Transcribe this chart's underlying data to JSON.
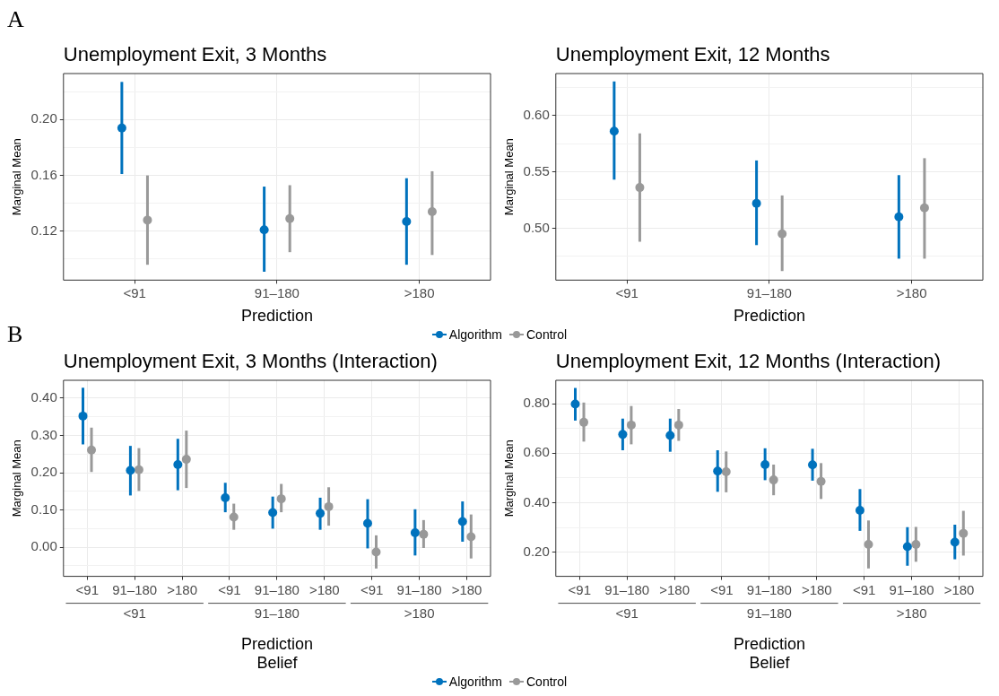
{
  "chart_data": [
    {
      "type": "other",
      "title": "A"
    },
    {
      "type": "scatter",
      "title": "Unemployment Exit, 3 Months",
      "xlabel": "Prediction",
      "ylabel": "Marginal Mean",
      "categories": [
        "<91",
        "91–180",
        ">180"
      ],
      "ylim": [
        0.085,
        0.233
      ],
      "yticks": [
        {
          "value": 0.1,
          "label": null
        },
        {
          "value": 0.12,
          "label": "0.12"
        },
        {
          "value": 0.14,
          "label": null
        },
        {
          "value": 0.16,
          "label": "0.16"
        },
        {
          "value": 0.18,
          "label": null
        },
        {
          "value": 0.2,
          "label": "0.20"
        },
        {
          "value": 0.22,
          "label": null
        }
      ],
      "grid": true,
      "legend": "bottom",
      "marker": "circle",
      "series": [
        {
          "name": "Algorithm",
          "color": "#0072bd",
          "values": [
            0.194,
            0.121,
            0.127
          ],
          "errors": [
            [
              0.161,
              0.227
            ],
            [
              0.091,
              0.152
            ],
            [
              0.096,
              0.158
            ]
          ]
        },
        {
          "name": "Control",
          "color": "#999999",
          "values": [
            0.128,
            0.129,
            0.134
          ],
          "errors": [
            [
              0.096,
              0.16
            ],
            [
              0.105,
              0.153
            ],
            [
              0.103,
              0.163
            ]
          ]
        }
      ]
    },
    {
      "type": "scatter",
      "title": "Unemployment Exit, 12 Months",
      "xlabel": "Prediction",
      "ylabel": "Marginal Mean",
      "categories": [
        "<91",
        "91–180",
        ">180"
      ],
      "ylim": [
        0.454,
        0.637
      ],
      "yticks": [
        {
          "value": 0.475,
          "label": null
        },
        {
          "value": 0.5,
          "label": "0.50"
        },
        {
          "value": 0.525,
          "label": null
        },
        {
          "value": 0.55,
          "label": "0.55"
        },
        {
          "value": 0.575,
          "label": null
        },
        {
          "value": 0.6,
          "label": "0.60"
        },
        {
          "value": 0.625,
          "label": null
        }
      ],
      "grid": true,
      "marker": "circle",
      "series": [
        {
          "color": "#0072bd",
          "values": [
            0.586,
            0.522,
            0.51
          ],
          "errors": [
            [
              0.543,
              0.63
            ],
            [
              0.485,
              0.56
            ],
            [
              0.473,
              0.547
            ]
          ]
        },
        {
          "color": "#999999",
          "values": [
            0.536,
            0.495,
            0.518
          ],
          "errors": [
            [
              0.488,
              0.584
            ],
            [
              0.462,
              0.529
            ],
            [
              0.473,
              0.562
            ]
          ]
        }
      ]
    },
    {
      "type": "other",
      "title": "B"
    },
    {
      "type": "scatter",
      "title": "Unemployment Exit, 3 Months (Interaction)",
      "xlabel": "Prediction\nBelief",
      "ylabel": "Marginal Mean",
      "categories": [
        "<91",
        "91–180",
        ">180",
        "<91",
        "91–180",
        ">180",
        "<91",
        "91–180",
        ">180"
      ],
      "annotations": [
        "<91",
        "91–180",
        ">180"
      ],
      "ylim": [
        -0.078,
        0.448
      ],
      "yticks": [
        {
          "value": -0.05,
          "label": null
        },
        {
          "value": 0,
          "label": "0.00"
        },
        {
          "value": 0.05,
          "label": null
        },
        {
          "value": 0.1,
          "label": "0.10"
        },
        {
          "value": 0.15,
          "label": null
        },
        {
          "value": 0.2,
          "label": "0.20"
        },
        {
          "value": 0.25,
          "label": null
        },
        {
          "value": 0.3,
          "label": "0.30"
        },
        {
          "value": 0.35,
          "label": null
        },
        {
          "value": 0.4,
          "label": "0.40"
        }
      ],
      "grid": true,
      "legend": "bottom",
      "marker": "circle",
      "series": [
        {
          "name": "Algorithm",
          "color": "#0072bd",
          "values": [
            0.352,
            0.206,
            0.222,
            0.133,
            0.093,
            0.091,
            0.064,
            0.039,
            0.069
          ],
          "errors": [
            [
              0.276,
              0.428
            ],
            [
              0.139,
              0.272
            ],
            [
              0.153,
              0.291
            ],
            [
              0.094,
              0.173
            ],
            [
              0.05,
              0.136
            ],
            [
              0.047,
              0.133
            ],
            [
              -0.003,
              0.129
            ],
            [
              -0.022,
              0.102
            ],
            [
              0.015,
              0.123
            ]
          ]
        },
        {
          "name": "Control",
          "color": "#999999",
          "values": [
            0.261,
            0.208,
            0.236,
            0.081,
            0.13,
            0.109,
            -0.013,
            0.035,
            0.028
          ],
          "errors": [
            [
              0.202,
              0.321
            ],
            [
              0.151,
              0.266
            ],
            [
              0.159,
              0.313
            ],
            [
              0.047,
              0.117
            ],
            [
              0.094,
              0.17
            ],
            [
              0.058,
              0.161
            ],
            [
              -0.057,
              0.032
            ],
            [
              -0.002,
              0.073
            ],
            [
              -0.03,
              0.088
            ]
          ]
        }
      ]
    },
    {
      "type": "scatter",
      "title": "Unemployment Exit, 12 Months (Interaction)",
      "xlabel": "Prediction\nBelief",
      "ylabel": "Marginal Mean",
      "categories": [
        "<91",
        "91–180",
        ">180",
        "<91",
        "91–180",
        ">180",
        "<91",
        "91–180",
        ">180"
      ],
      "annotations": [
        "<91",
        "91–180",
        ">180"
      ],
      "ylim": [
        0.102,
        0.895
      ],
      "yticks": [
        {
          "value": 0.2,
          "label": "0.20"
        },
        {
          "value": 0.3,
          "label": null
        },
        {
          "value": 0.4,
          "label": "0.40"
        },
        {
          "value": 0.5,
          "label": null
        },
        {
          "value": 0.6,
          "label": "0.60"
        },
        {
          "value": 0.7,
          "label": null
        },
        {
          "value": 0.8,
          "label": "0.80"
        }
      ],
      "grid": true,
      "marker": "circle",
      "series": [
        {
          "color": "#0072bd",
          "values": [
            0.799,
            0.676,
            0.672,
            0.528,
            0.554,
            0.553,
            0.369,
            0.222,
            0.24
          ],
          "errors": [
            [
              0.732,
              0.864
            ],
            [
              0.612,
              0.74
            ],
            [
              0.606,
              0.74
            ],
            [
              0.444,
              0.612
            ],
            [
              0.491,
              0.62
            ],
            [
              0.489,
              0.618
            ],
            [
              0.286,
              0.455
            ],
            [
              0.145,
              0.301
            ],
            [
              0.171,
              0.311
            ]
          ]
        },
        {
          "color": "#999999",
          "values": [
            0.725,
            0.714,
            0.714,
            0.525,
            0.492,
            0.486,
            0.231,
            0.231,
            0.276
          ],
          "errors": [
            [
              0.647,
              0.805
            ],
            [
              0.636,
              0.791
            ],
            [
              0.65,
              0.779
            ],
            [
              0.442,
              0.607
            ],
            [
              0.43,
              0.554
            ],
            [
              0.415,
              0.56
            ],
            [
              0.134,
              0.328
            ],
            [
              0.161,
              0.302
            ],
            [
              0.186,
              0.367
            ]
          ]
        }
      ]
    }
  ]
}
